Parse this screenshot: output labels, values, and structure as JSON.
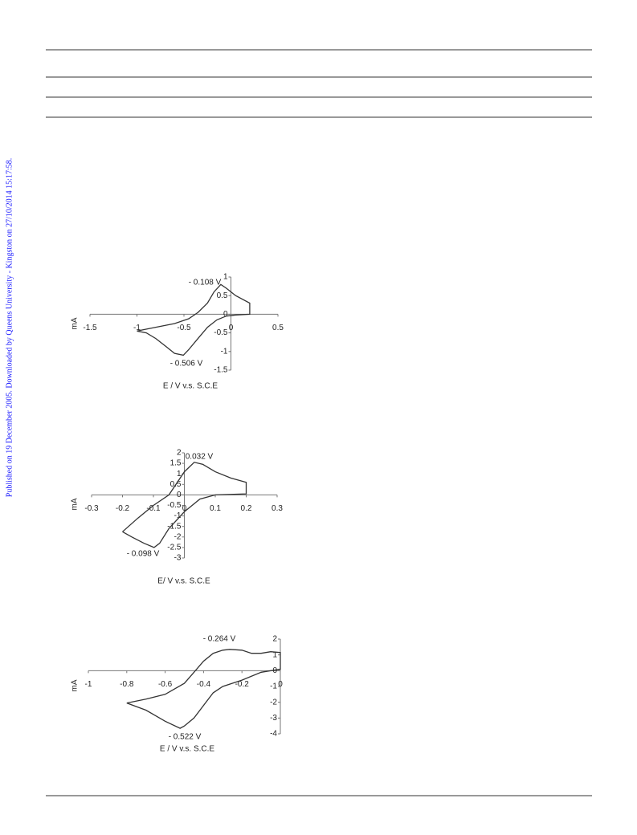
{
  "side_note": "Published on 19 December 2005. Downloaded by Queens University - Kingston on 27/10/2014 15:17:58.",
  "chart_data": [
    {
      "type": "line",
      "x_label": "E / V v.s. S.C.E",
      "y_label": "mA",
      "annotations": [
        "- 0.108 V",
        "- 0.506 V"
      ],
      "color": "#333333",
      "x": [
        -1.0,
        -0.8,
        -0.6,
        -0.45,
        -0.35,
        -0.25,
        -0.18,
        -0.108,
        -0.05,
        0.05,
        0.2,
        0.2,
        0.05,
        -0.05,
        -0.15,
        -0.25,
        -0.35,
        -0.45,
        -0.506,
        -0.6,
        -0.7,
        -0.8,
        -0.9,
        -1.0
      ],
      "values": [
        -0.45,
        -0.35,
        -0.25,
        -0.12,
        0.05,
        0.3,
        0.6,
        0.8,
        0.7,
        0.5,
        0.3,
        0.0,
        -0.02,
        -0.05,
        -0.15,
        -0.35,
        -0.65,
        -0.95,
        -1.1,
        -1.05,
        -0.85,
        -0.65,
        -0.5,
        -0.45
      ],
      "xlim": [
        -1.5,
        0.5
      ],
      "ylim": [
        -1.5,
        1
      ],
      "xticks": [
        -1.5,
        -1,
        -0.5,
        0,
        0.5
      ],
      "yticks": [
        -1.5,
        -1,
        -0.5,
        0,
        0.5,
        1
      ]
    },
    {
      "type": "line",
      "x_label": "E/ V v.s. S.C.E",
      "y_label": "mA",
      "annotations": [
        "0.032 V",
        "- 0.098 V"
      ],
      "color": "#333333",
      "x": [
        -0.2,
        -0.15,
        -0.1,
        -0.05,
        0,
        0.032,
        0.06,
        0.1,
        0.15,
        0.2,
        0.2,
        0.1,
        0.05,
        0,
        -0.05,
        -0.08,
        -0.098,
        -0.13,
        -0.17,
        -0.2
      ],
      "values": [
        -1.75,
        -1.1,
        -0.5,
        0,
        1.1,
        1.55,
        1.45,
        1.1,
        0.8,
        0.6,
        0.05,
        0.0,
        -0.2,
        -0.8,
        -1.6,
        -2.3,
        -2.5,
        -2.3,
        -2.0,
        -1.75
      ],
      "xlim": [
        -0.3,
        0.3
      ],
      "ylim": [
        -3,
        2
      ],
      "xticks": [
        -0.3,
        -0.2,
        -0.1,
        0,
        0.1,
        0.2,
        0.3
      ],
      "yticks": [
        -3,
        -2.5,
        -2,
        -1.5,
        -1,
        -0.5,
        0,
        0.5,
        1,
        1.5,
        2
      ]
    },
    {
      "type": "line",
      "x_label": "E / V v.s. S.C.E",
      "y_label": "mA",
      "annotations": [
        "- 0.264 V",
        "- 0.522 V"
      ],
      "color": "#333333",
      "x": [
        -0.8,
        -0.7,
        -0.6,
        -0.5,
        -0.45,
        -0.4,
        -0.35,
        -0.3,
        -0.264,
        -0.2,
        -0.15,
        -0.1,
        -0.05,
        0,
        0,
        -0.1,
        -0.2,
        -0.3,
        -0.35,
        -0.4,
        -0.45,
        -0.5,
        -0.522,
        -0.6,
        -0.7,
        -0.8
      ],
      "values": [
        -2.05,
        -1.8,
        -1.5,
        -0.8,
        -0.1,
        0.6,
        1.1,
        1.3,
        1.35,
        1.3,
        1.1,
        1.1,
        1.2,
        1.15,
        0.1,
        -0.1,
        -0.6,
        -1.0,
        -1.4,
        -2.2,
        -3.0,
        -3.5,
        -3.65,
        -3.2,
        -2.5,
        -2.05
      ],
      "xlim": [
        -1,
        0
      ],
      "ylim": [
        -4,
        2
      ],
      "xticks": [
        -1,
        -0.8,
        -0.6,
        -0.4,
        -0.2,
        0
      ],
      "yticks": [
        -4,
        -3,
        -2,
        -1,
        0,
        1,
        2
      ]
    }
  ]
}
